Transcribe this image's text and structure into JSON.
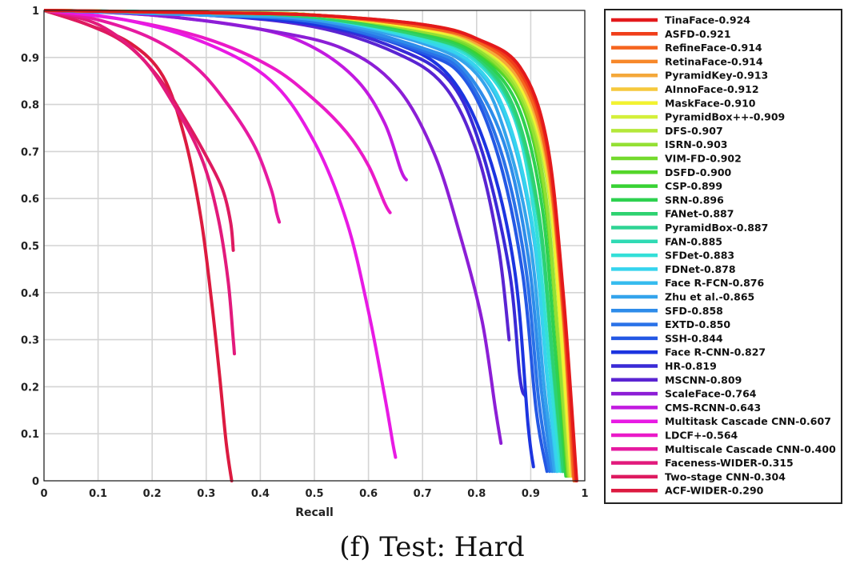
{
  "caption": "(f) Test: Hard",
  "chart_data": {
    "type": "line",
    "title": "",
    "xlabel": "Recall",
    "ylabel": "",
    "xlim": [
      0,
      1
    ],
    "ylim": [
      0,
      1
    ],
    "grid": true,
    "legend_position": "right",
    "x_ticks": [
      "0",
      "0.1",
      "0.2",
      "0.3",
      "0.4",
      "0.5",
      "0.6",
      "0.7",
      "0.8",
      "0.9",
      "1"
    ],
    "y_ticks": [
      "0",
      "0.1",
      "0.2",
      "0.3",
      "0.4",
      "0.5",
      "0.6",
      "0.7",
      "0.8",
      "0.9",
      "1"
    ],
    "series": [
      {
        "name": "TinaFace-0.924",
        "color": "#e31a1c",
        "x": [
          0,
          0.3,
          0.5,
          0.7,
          0.8,
          0.88,
          0.93,
          0.96,
          0.985
        ],
        "y": [
          1,
          0.995,
          0.99,
          0.97,
          0.94,
          0.88,
          0.72,
          0.4,
          0.0
        ]
      },
      {
        "name": "ASFD-0.921",
        "color": "#f03e1a",
        "x": [
          0,
          0.3,
          0.5,
          0.7,
          0.8,
          0.88,
          0.93,
          0.96,
          0.983
        ],
        "y": [
          1,
          0.995,
          0.99,
          0.97,
          0.94,
          0.87,
          0.71,
          0.38,
          0.0
        ]
      },
      {
        "name": "RefineFace-0.914",
        "color": "#f5641e",
        "x": [
          0,
          0.3,
          0.5,
          0.7,
          0.8,
          0.88,
          0.93,
          0.96,
          0.98
        ],
        "y": [
          1,
          0.995,
          0.99,
          0.965,
          0.935,
          0.86,
          0.69,
          0.36,
          0.0
        ]
      },
      {
        "name": "RetinaFace-0.914",
        "color": "#f7882a",
        "x": [
          0,
          0.3,
          0.5,
          0.7,
          0.8,
          0.88,
          0.93,
          0.96,
          0.98
        ],
        "y": [
          1,
          0.995,
          0.99,
          0.965,
          0.935,
          0.86,
          0.69,
          0.36,
          0.01
        ]
      },
      {
        "name": "PyramidKey-0.913",
        "color": "#f4a83a",
        "x": [
          0,
          0.3,
          0.5,
          0.7,
          0.8,
          0.88,
          0.93,
          0.96,
          0.978
        ],
        "y": [
          1,
          0.995,
          0.99,
          0.965,
          0.93,
          0.85,
          0.68,
          0.35,
          0.01
        ]
      },
      {
        "name": "AInnoFace-0.912",
        "color": "#f6c93c",
        "x": [
          0,
          0.3,
          0.5,
          0.7,
          0.8,
          0.88,
          0.93,
          0.96,
          0.977
        ],
        "y": [
          1,
          0.995,
          0.99,
          0.965,
          0.93,
          0.85,
          0.67,
          0.34,
          0.01
        ]
      },
      {
        "name": "MaskFace-0.910",
        "color": "#f2f230",
        "x": [
          0,
          0.3,
          0.5,
          0.7,
          0.8,
          0.88,
          0.93,
          0.955,
          0.975
        ],
        "y": [
          1,
          0.995,
          0.99,
          0.96,
          0.93,
          0.84,
          0.66,
          0.34,
          0.01
        ]
      },
      {
        "name": "PyramidBox++-0.909",
        "color": "#d4f03a",
        "x": [
          0,
          0.3,
          0.5,
          0.7,
          0.8,
          0.88,
          0.93,
          0.955,
          0.975
        ],
        "y": [
          1,
          0.995,
          0.99,
          0.96,
          0.925,
          0.84,
          0.65,
          0.33,
          0.01
        ]
      },
      {
        "name": "DFS-0.907",
        "color": "#b4e83a",
        "x": [
          0,
          0.3,
          0.5,
          0.7,
          0.8,
          0.88,
          0.93,
          0.955,
          0.972
        ],
        "y": [
          1,
          0.995,
          0.99,
          0.96,
          0.925,
          0.83,
          0.64,
          0.32,
          0.01
        ]
      },
      {
        "name": "ISRN-0.903",
        "color": "#94e034",
        "x": [
          0,
          0.3,
          0.5,
          0.7,
          0.8,
          0.88,
          0.925,
          0.95,
          0.97
        ],
        "y": [
          1,
          0.995,
          0.99,
          0.955,
          0.92,
          0.82,
          0.63,
          0.31,
          0.01
        ]
      },
      {
        "name": "VIM-FD-0.902",
        "color": "#74da2e",
        "x": [
          0,
          0.3,
          0.5,
          0.7,
          0.8,
          0.88,
          0.925,
          0.95,
          0.97
        ],
        "y": [
          1,
          0.995,
          0.99,
          0.955,
          0.915,
          0.82,
          0.62,
          0.3,
          0.01
        ]
      },
      {
        "name": "DSFD-0.900",
        "color": "#54d62a",
        "x": [
          0,
          0.3,
          0.5,
          0.7,
          0.8,
          0.88,
          0.925,
          0.95,
          0.968
        ],
        "y": [
          1,
          0.995,
          0.99,
          0.955,
          0.915,
          0.81,
          0.61,
          0.3,
          0.01
        ]
      },
      {
        "name": "CSP-0.899",
        "color": "#38d234",
        "x": [
          0,
          0.3,
          0.5,
          0.7,
          0.8,
          0.88,
          0.925,
          0.95,
          0.967
        ],
        "y": [
          1,
          0.995,
          0.99,
          0.955,
          0.91,
          0.81,
          0.6,
          0.29,
          0.01
        ]
      },
      {
        "name": "SRN-0.896",
        "color": "#2ed150",
        "x": [
          0,
          0.3,
          0.5,
          0.7,
          0.8,
          0.875,
          0.92,
          0.945,
          0.965
        ],
        "y": [
          1,
          0.995,
          0.99,
          0.95,
          0.905,
          0.8,
          0.59,
          0.28,
          0.01
        ]
      },
      {
        "name": "FANet-0.887",
        "color": "#2ed270",
        "x": [
          0,
          0.3,
          0.5,
          0.7,
          0.8,
          0.87,
          0.915,
          0.94,
          0.96
        ],
        "y": [
          1,
          0.995,
          0.985,
          0.945,
          0.9,
          0.79,
          0.57,
          0.27,
          0.02
        ]
      },
      {
        "name": "PyramidBox-0.887",
        "color": "#2ed494",
        "x": [
          0,
          0.3,
          0.5,
          0.7,
          0.8,
          0.87,
          0.915,
          0.94,
          0.96
        ],
        "y": [
          1,
          0.995,
          0.985,
          0.945,
          0.9,
          0.78,
          0.56,
          0.26,
          0.02
        ]
      },
      {
        "name": "FAN-0.885",
        "color": "#30dab4",
        "x": [
          0,
          0.3,
          0.5,
          0.7,
          0.8,
          0.87,
          0.915,
          0.94,
          0.958
        ],
        "y": [
          1,
          0.995,
          0.985,
          0.945,
          0.895,
          0.78,
          0.55,
          0.25,
          0.02
        ]
      },
      {
        "name": "SFDet-0.883",
        "color": "#34e0d8",
        "x": [
          0,
          0.3,
          0.5,
          0.7,
          0.8,
          0.87,
          0.91,
          0.935,
          0.955
        ],
        "y": [
          1,
          0.995,
          0.985,
          0.94,
          0.89,
          0.77,
          0.54,
          0.24,
          0.02
        ]
      },
      {
        "name": "FDNet-0.878",
        "color": "#36d4ee",
        "x": [
          0,
          0.3,
          0.5,
          0.7,
          0.8,
          0.86,
          0.905,
          0.93,
          0.95
        ],
        "y": [
          1,
          0.995,
          0.985,
          0.935,
          0.88,
          0.76,
          0.53,
          0.23,
          0.02
        ]
      },
      {
        "name": "Face R-FCN-0.876",
        "color": "#36bcee",
        "x": [
          0,
          0.3,
          0.5,
          0.7,
          0.8,
          0.86,
          0.905,
          0.93,
          0.948
        ],
        "y": [
          1,
          0.995,
          0.985,
          0.935,
          0.875,
          0.75,
          0.52,
          0.22,
          0.02
        ]
      },
      {
        "name": "Zhu et al.-0.865",
        "color": "#34a4ec",
        "x": [
          0,
          0.3,
          0.5,
          0.7,
          0.8,
          0.855,
          0.9,
          0.925,
          0.944
        ],
        "y": [
          1,
          0.99,
          0.98,
          0.93,
          0.865,
          0.73,
          0.5,
          0.2,
          0.02
        ]
      },
      {
        "name": "SFD-0.858",
        "color": "#2e8cea",
        "x": [
          0,
          0.3,
          0.5,
          0.7,
          0.78,
          0.85,
          0.895,
          0.92,
          0.94
        ],
        "y": [
          1,
          0.99,
          0.98,
          0.92,
          0.87,
          0.72,
          0.48,
          0.19,
          0.02
        ]
      },
      {
        "name": "EXTD-0.850",
        "color": "#2a72e8",
        "x": [
          0,
          0.3,
          0.5,
          0.7,
          0.78,
          0.845,
          0.89,
          0.915,
          0.935
        ],
        "y": [
          1,
          0.99,
          0.975,
          0.915,
          0.86,
          0.7,
          0.46,
          0.17,
          0.02
        ]
      },
      {
        "name": "SSH-0.844",
        "color": "#2458e4",
        "x": [
          0,
          0.3,
          0.5,
          0.7,
          0.78,
          0.84,
          0.885,
          0.91,
          0.93
        ],
        "y": [
          1,
          0.99,
          0.975,
          0.91,
          0.85,
          0.69,
          0.44,
          0.15,
          0.02
        ]
      },
      {
        "name": "Face R-CNN-0.827",
        "color": "#1c34e0",
        "x": [
          0,
          0.3,
          0.5,
          0.65,
          0.75,
          0.82,
          0.87,
          0.895,
          0.905
        ],
        "y": [
          1,
          0.99,
          0.97,
          0.93,
          0.86,
          0.7,
          0.45,
          0.12,
          0.03
        ]
      },
      {
        "name": "HR-0.819",
        "color": "#3a2ad6",
        "x": [
          0,
          0.3,
          0.5,
          0.65,
          0.75,
          0.81,
          0.86,
          0.88,
          0.89
        ],
        "y": [
          1,
          0.99,
          0.97,
          0.92,
          0.85,
          0.7,
          0.45,
          0.22,
          0.18
        ]
      },
      {
        "name": "MSCNN-0.809",
        "color": "#5a24d2",
        "x": [
          0,
          0.3,
          0.5,
          0.65,
          0.74,
          0.8,
          0.84,
          0.86
        ],
        "y": [
          1,
          0.99,
          0.965,
          0.91,
          0.84,
          0.7,
          0.5,
          0.3
        ]
      },
      {
        "name": "ScaleFace-0.764",
        "color": "#8c1ed6",
        "x": [
          0,
          0.2,
          0.4,
          0.55,
          0.65,
          0.72,
          0.77,
          0.81,
          0.835,
          0.845
        ],
        "y": [
          1,
          0.99,
          0.96,
          0.92,
          0.84,
          0.7,
          0.52,
          0.34,
          0.15,
          0.08
        ]
      },
      {
        "name": "CMS-RCNN-0.643",
        "color": "#c21ae0",
        "x": [
          0,
          0.2,
          0.4,
          0.5,
          0.58,
          0.63,
          0.66,
          0.67
        ],
        "y": [
          1,
          0.99,
          0.96,
          0.92,
          0.85,
          0.76,
          0.66,
          0.64
        ]
      },
      {
        "name": "Multitask Cascade CNN-0.607",
        "color": "#e81ae4",
        "x": [
          0,
          0.15,
          0.3,
          0.42,
          0.5,
          0.56,
          0.6,
          0.63,
          0.645,
          0.65
        ],
        "y": [
          1,
          0.98,
          0.93,
          0.85,
          0.72,
          0.55,
          0.36,
          0.18,
          0.08,
          0.05
        ]
      },
      {
        "name": "LDCF+-0.564",
        "color": "#ea1ac8",
        "x": [
          0,
          0.15,
          0.3,
          0.42,
          0.5,
          0.56,
          0.6,
          0.63,
          0.64
        ],
        "y": [
          1,
          0.98,
          0.94,
          0.88,
          0.81,
          0.74,
          0.67,
          0.59,
          0.57
        ]
      },
      {
        "name": "Multiscale Cascade CNN-0.400",
        "color": "#e61aa0",
        "x": [
          0,
          0.1,
          0.2,
          0.28,
          0.34,
          0.39,
          0.42,
          0.43,
          0.435
        ],
        "y": [
          1,
          0.98,
          0.94,
          0.88,
          0.8,
          0.71,
          0.62,
          0.57,
          0.55
        ]
      },
      {
        "name": "Faceness-WIDER-0.315",
        "color": "#e21a7c",
        "x": [
          0,
          0.1,
          0.18,
          0.24,
          0.29,
          0.32,
          0.34,
          0.35,
          0.352
        ],
        "y": [
          1,
          0.97,
          0.9,
          0.8,
          0.69,
          0.57,
          0.43,
          0.3,
          0.27
        ]
      },
      {
        "name": "Two-stage CNN-0.304",
        "color": "#de1a60",
        "x": [
          0,
          0.08,
          0.15,
          0.21,
          0.26,
          0.3,
          0.33,
          0.345,
          0.35
        ],
        "y": [
          1,
          0.97,
          0.93,
          0.86,
          0.77,
          0.69,
          0.62,
          0.55,
          0.49
        ]
      },
      {
        "name": "ACF-WIDER-0.290",
        "color": "#dc1a40",
        "x": [
          0,
          0.08,
          0.16,
          0.22,
          0.26,
          0.29,
          0.31,
          0.325,
          0.337,
          0.347
        ],
        "y": [
          1,
          0.97,
          0.93,
          0.86,
          0.73,
          0.56,
          0.38,
          0.22,
          0.08,
          0.0
        ]
      }
    ]
  }
}
